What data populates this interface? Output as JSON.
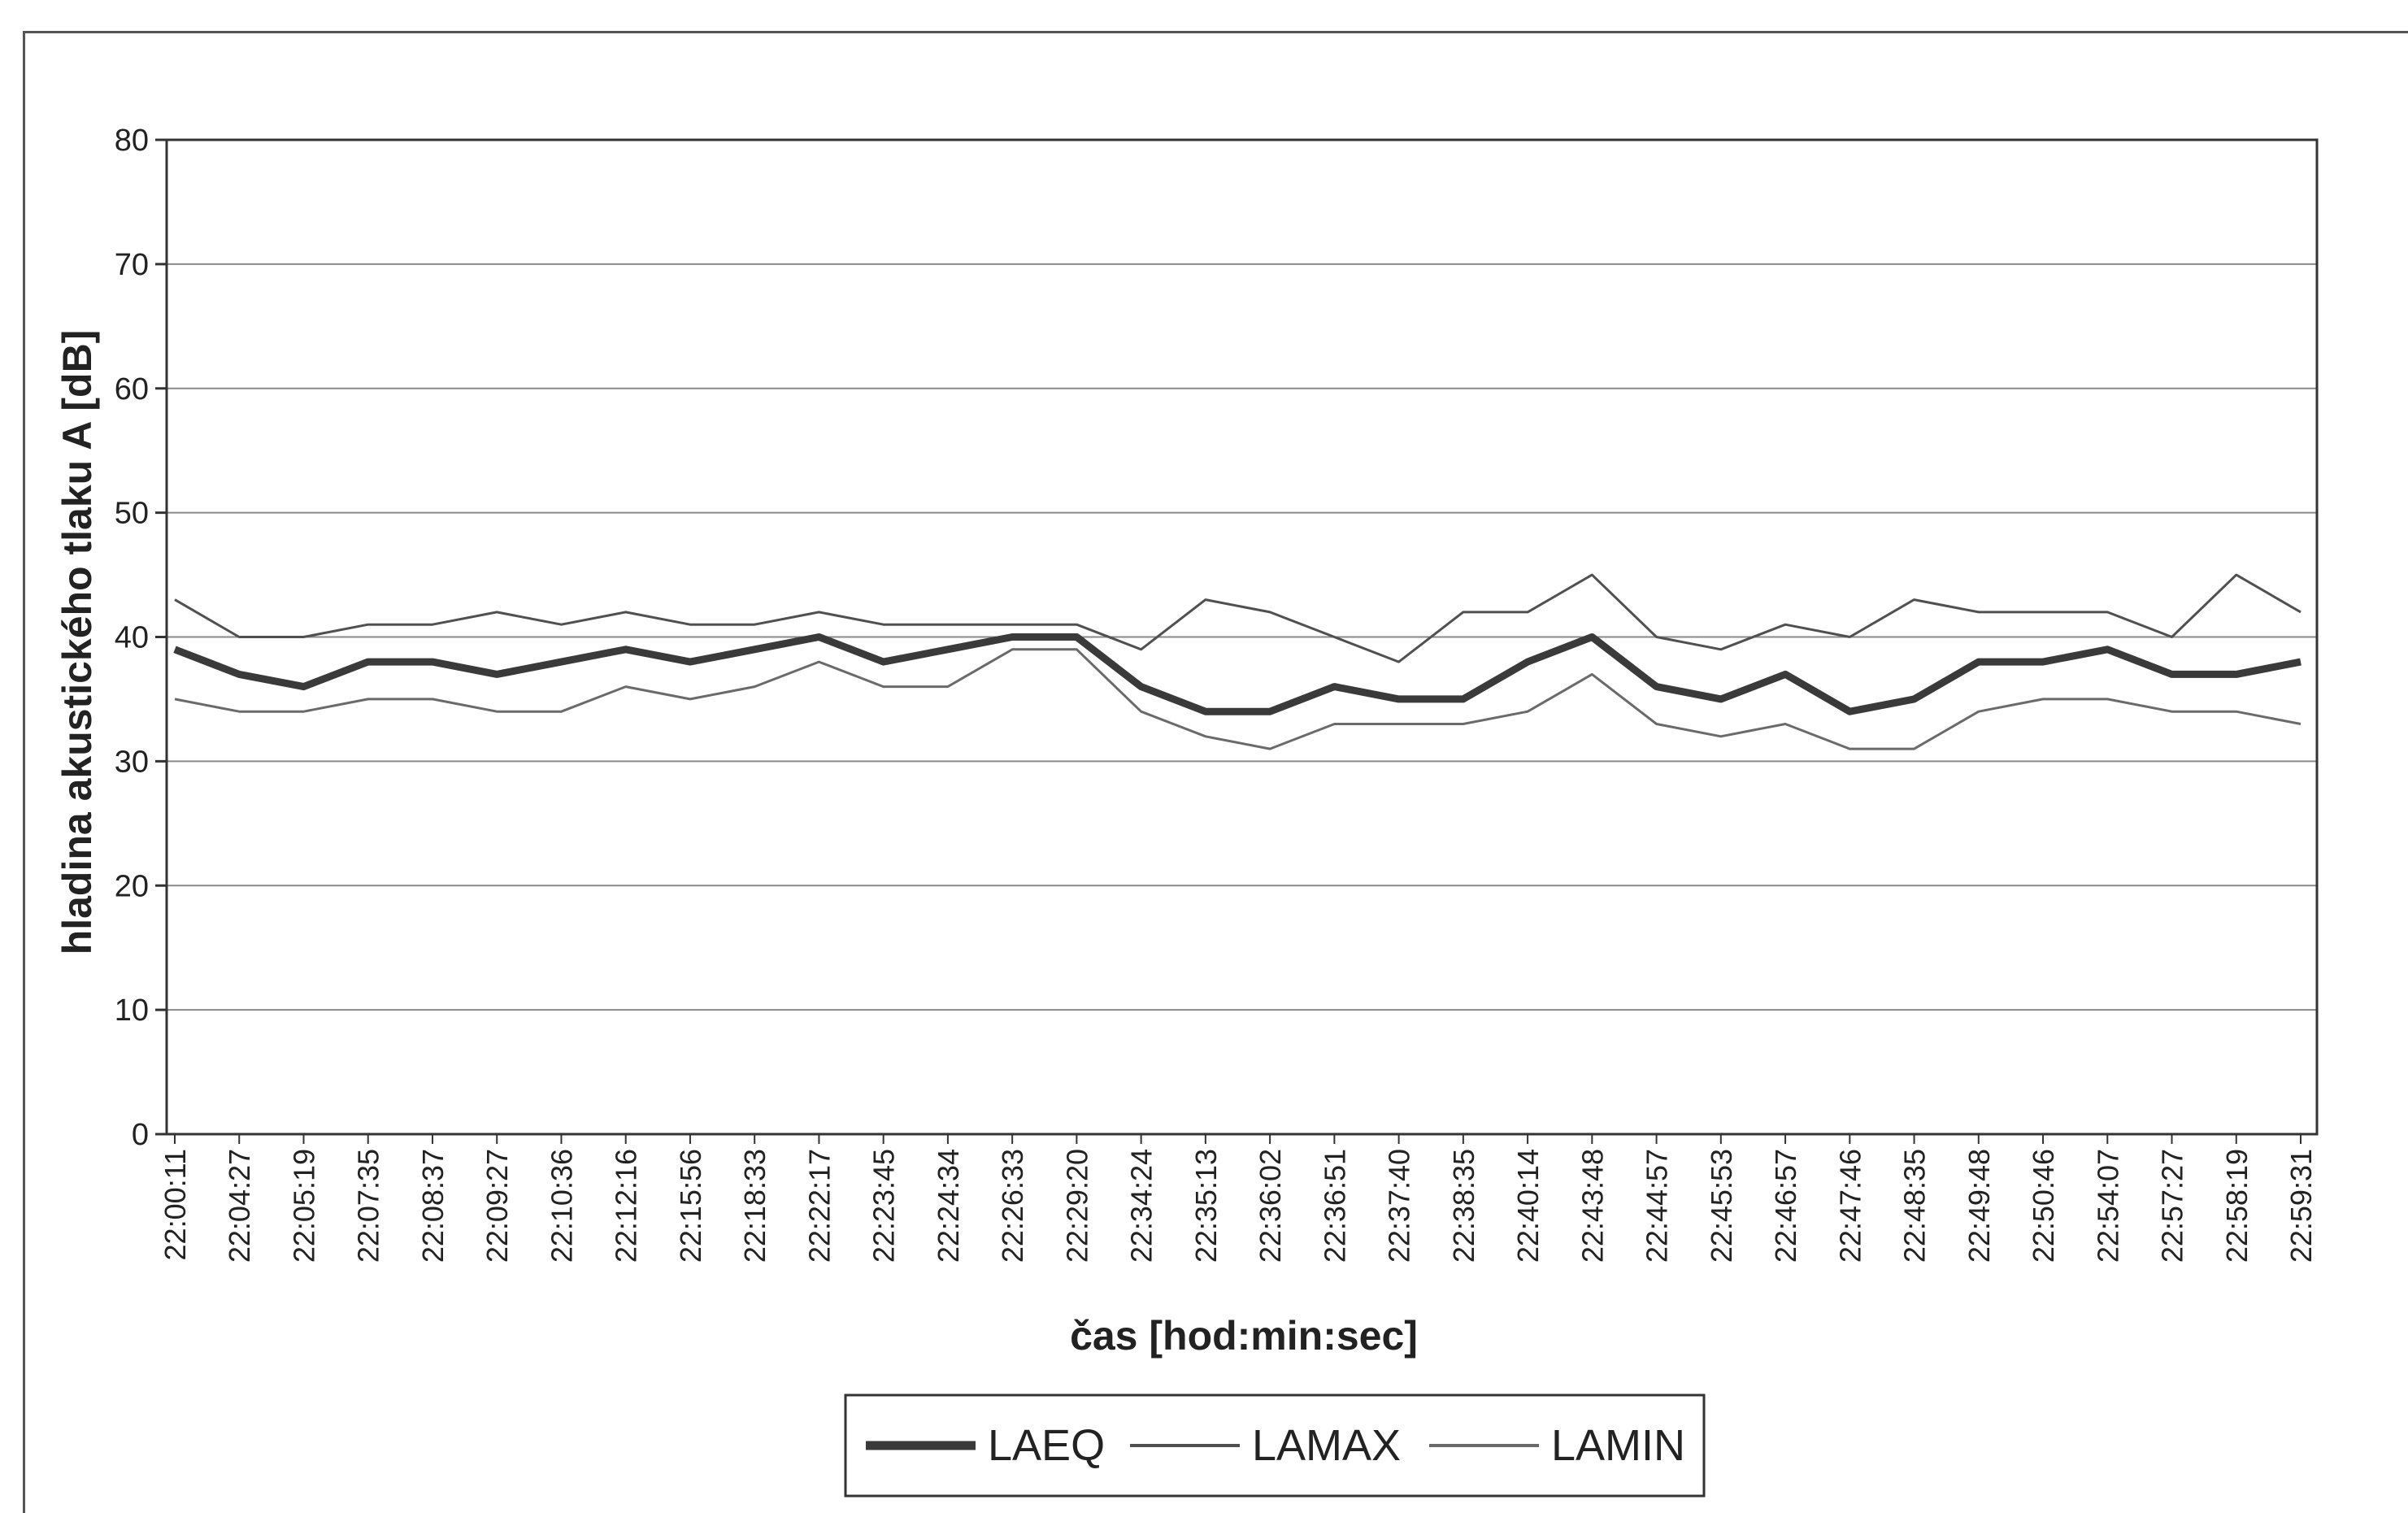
{
  "chart_data": {
    "type": "line",
    "xlabel": "čas [hod:min:sec]",
    "ylabel": "hladina akustického tlaku A [dB]",
    "ylim": [
      0,
      80
    ],
    "yticks": [
      0,
      10,
      20,
      30,
      40,
      50,
      60,
      70,
      80
    ],
    "grid": true,
    "legend_position": "bottom",
    "categories": [
      "22:00:11",
      "22:04:27",
      "22:05:19",
      "22:07:35",
      "22:08:37",
      "22:09:27",
      "22:10:36",
      "22:12:16",
      "22:15:56",
      "22:18:33",
      "22:22:17",
      "22:23:45",
      "22:24:34",
      "22:26:33",
      "22:29:20",
      "22:34:24",
      "22:35:13",
      "22:36:02",
      "22:36:51",
      "22:37:40",
      "22:38:35",
      "22:40:14",
      "22:43:48",
      "22:44:57",
      "22:45:53",
      "22:46:57",
      "22:47:46",
      "22:48:35",
      "22:49:48",
      "22:50:46",
      "22:54:07",
      "22:57:27",
      "22:58:19",
      "22:59:31"
    ],
    "series": [
      {
        "name": "LAEQ",
        "values": [
          39,
          37,
          36,
          38,
          38,
          37,
          38,
          39,
          38,
          39,
          40,
          38,
          39,
          40,
          40,
          36,
          34,
          34,
          36,
          35,
          35,
          38,
          40,
          36,
          35,
          37,
          34,
          35,
          38,
          38,
          39,
          37,
          37,
          38
        ]
      },
      {
        "name": "LAMAX",
        "values": [
          43,
          40,
          40,
          41,
          41,
          42,
          41,
          42,
          41,
          41,
          42,
          41,
          41,
          41,
          41,
          39,
          43,
          42,
          40,
          38,
          42,
          42,
          45,
          40,
          39,
          41,
          40,
          43,
          42,
          42,
          42,
          40,
          45,
          42
        ]
      },
      {
        "name": "LAMIN",
        "values": [
          35,
          34,
          34,
          35,
          35,
          34,
          34,
          36,
          35,
          36,
          38,
          36,
          36,
          39,
          39,
          34,
          32,
          31,
          33,
          33,
          33,
          34,
          37,
          33,
          32,
          33,
          31,
          31,
          34,
          35,
          35,
          34,
          34,
          33
        ]
      }
    ],
    "colors": {
      "LAEQ": "#3a3a3a",
      "LAMAX": "#505050",
      "LAMIN": "#6a6a6a"
    },
    "legend": {
      "laeq": "LAEQ",
      "lamax": "LAMAX",
      "lamin": "LAMIN"
    }
  }
}
